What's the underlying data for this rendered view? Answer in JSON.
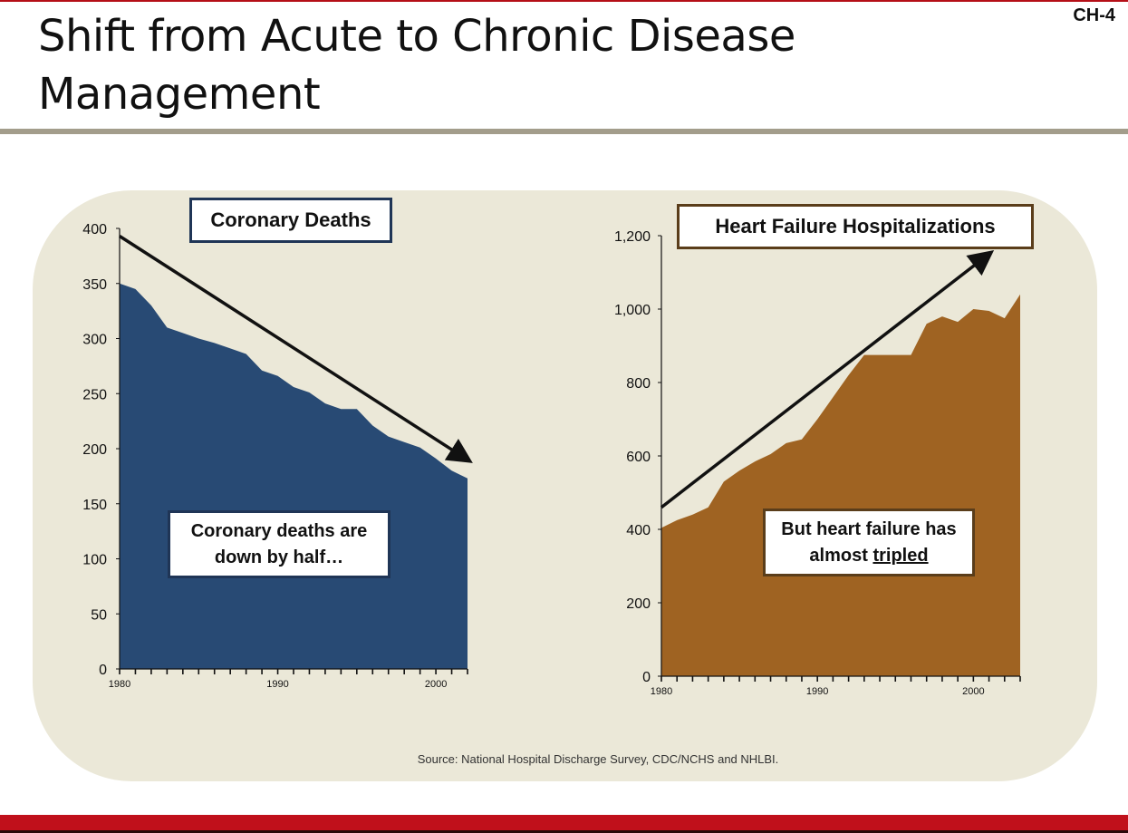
{
  "slide": {
    "title": "Shift from Acute to Chronic Disease Management",
    "id": "CH-4",
    "source": "Source:  National Hospital Discharge Survey, CDC/NCHS and NHLBI."
  },
  "colors": {
    "accent_red": "#c0101b",
    "rule_gray": "#a39d8b",
    "panel_bg": "#ebe8d8",
    "coronary_fill": "#284a74",
    "heart_failure_fill": "#9f6322",
    "coronary_border": "#1f3556",
    "heart_failure_border": "#5a3d1a"
  },
  "chart_data": [
    {
      "type": "area",
      "title": "Coronary Deaths",
      "callout": [
        "Coronary deaths are",
        "down by half…"
      ],
      "x": [
        1980,
        1981,
        1982,
        1983,
        1984,
        1985,
        1986,
        1987,
        1988,
        1989,
        1990,
        1991,
        1992,
        1993,
        1994,
        1995,
        1996,
        1997,
        1998,
        1999,
        2000,
        2001,
        2002
      ],
      "values": [
        350,
        345,
        330,
        310,
        305,
        300,
        296,
        291,
        286,
        271,
        266,
        256,
        251,
        241,
        236,
        236,
        221,
        211,
        206,
        201,
        191,
        180,
        173
      ],
      "xlim": [
        1980,
        2002
      ],
      "ylim": [
        0,
        400
      ],
      "y_ticks": [
        0,
        50,
        100,
        150,
        200,
        250,
        300,
        350,
        400
      ],
      "y_tick_labels": [
        "0",
        "50",
        "100",
        "150",
        "200",
        "250",
        "300",
        "350",
        "400"
      ],
      "x_tick_labels": [
        {
          "year": 1980,
          "label": "1980"
        },
        {
          "year": 1990,
          "label": "1990"
        },
        {
          "year": 2000,
          "label": "2000"
        }
      ],
      "trend_arrow": {
        "from": [
          1980,
          393
        ],
        "to": [
          2002,
          190
        ]
      },
      "grid": false
    },
    {
      "type": "area",
      "title": "Heart Failure Hospitalizations",
      "callout": [
        "But heart failure has",
        "almost ",
        "tripled"
      ],
      "x": [
        1980,
        1981,
        1982,
        1983,
        1984,
        1985,
        1986,
        1987,
        1988,
        1989,
        1990,
        1991,
        1992,
        1993,
        1994,
        1995,
        1996,
        1997,
        1998,
        1999,
        2000,
        2001,
        2002,
        2003
      ],
      "values": [
        404,
        425,
        440,
        460,
        530,
        560,
        585,
        605,
        635,
        645,
        700,
        760,
        820,
        875,
        875,
        875,
        875,
        960,
        980,
        965,
        1000,
        995,
        975,
        1040
      ],
      "xlim": [
        1980,
        2003
      ],
      "ylim": [
        0,
        1200
      ],
      "y_ticks": [
        0,
        200,
        400,
        600,
        800,
        1000,
        1200
      ],
      "y_tick_labels": [
        "0",
        "200",
        "400",
        "600",
        "800",
        "1,000",
        "1,200"
      ],
      "x_tick_labels": [
        {
          "year": 1980,
          "label": "1980"
        },
        {
          "year": 1990,
          "label": "1990"
        },
        {
          "year": 2000,
          "label": "2000"
        }
      ],
      "trend_arrow": {
        "from": [
          1980,
          460
        ],
        "to": [
          2001,
          1150
        ]
      },
      "grid": false
    }
  ]
}
